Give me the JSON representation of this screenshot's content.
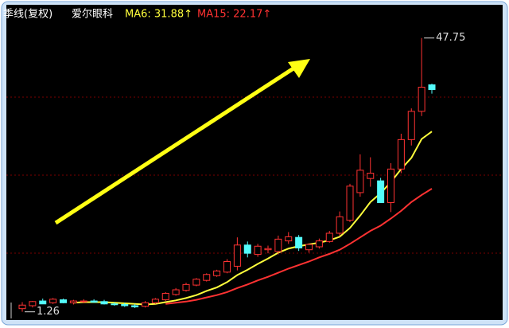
{
  "chart_data": {
    "type": "candlestick",
    "period_label": "季线(复权)",
    "name": "爱尔眼科",
    "ma6_label": "MA6: 31.88↑",
    "ma15_label": "MA15: 22.17↑",
    "high_annotation": 47.75,
    "low_annotation": 1.26,
    "up_color": "#ff3232",
    "down_color": "#54fcfc",
    "ylim": [
      0,
      51.5
    ],
    "candles": [
      [
        1.8,
        2.9,
        1.26,
        2.4
      ],
      [
        2.3,
        3.1,
        2.0,
        3.0
      ],
      [
        3.1,
        3.5,
        2.7,
        2.6
      ],
      [
        2.8,
        3.6,
        2.6,
        3.4
      ],
      [
        3.3,
        3.5,
        2.7,
        2.8
      ],
      [
        2.8,
        3.3,
        2.5,
        3.1
      ],
      [
        3.0,
        3.4,
        2.7,
        3.1
      ],
      [
        3.1,
        3.4,
        2.8,
        2.9
      ],
      [
        3.0,
        3.3,
        2.5,
        2.6
      ],
      [
        2.6,
        2.9,
        2.3,
        2.5
      ],
      [
        2.5,
        2.8,
        2.1,
        2.3
      ],
      [
        2.3,
        2.6,
        1.9,
        2.1
      ],
      [
        2.2,
        3.1,
        2.0,
        2.8
      ],
      [
        2.8,
        3.6,
        2.6,
        3.4
      ],
      [
        3.3,
        4.6,
        3.1,
        4.4
      ],
      [
        4.2,
        5.3,
        4.0,
        5.0
      ],
      [
        4.9,
        6.2,
        4.7,
        5.9
      ],
      [
        5.8,
        7.0,
        5.6,
        6.8
      ],
      [
        6.6,
        7.8,
        6.4,
        7.6
      ],
      [
        7.4,
        8.4,
        7.2,
        8.2
      ],
      [
        8.0,
        10.2,
        7.8,
        9.8
      ],
      [
        9.0,
        13.9,
        8.3,
        12.6
      ],
      [
        12.6,
        13.2,
        10.5,
        11.2
      ],
      [
        11.0,
        12.8,
        10.6,
        12.4
      ],
      [
        11.8,
        12.5,
        11.2,
        12.0
      ],
      [
        11.5,
        14.2,
        11.0,
        13.6
      ],
      [
        13.3,
        14.8,
        12.8,
        14.0
      ],
      [
        13.9,
        14.3,
        11.6,
        12.1
      ],
      [
        11.8,
        12.9,
        11.3,
        12.7
      ],
      [
        12.3,
        13.7,
        12.0,
        13.3
      ],
      [
        13.2,
        15.0,
        13.0,
        14.6
      ],
      [
        14.6,
        18.3,
        14.2,
        17.4
      ],
      [
        16.8,
        23.0,
        16.5,
        22.6
      ],
      [
        21.5,
        28.0,
        20.8,
        25.3
      ],
      [
        23.9,
        27.5,
        22.5,
        24.8
      ],
      [
        23.5,
        24.0,
        19.8,
        19.8
      ],
      [
        19.8,
        26.5,
        18.2,
        25.5
      ],
      [
        25.5,
        31.5,
        24.8,
        30.5
      ],
      [
        30.5,
        35.8,
        29.5,
        35.3
      ],
      [
        35.3,
        47.75,
        34.5,
        39.4
      ],
      [
        39.8,
        40.0,
        38.3,
        39.0
      ]
    ],
    "series": [
      {
        "name": "MA6",
        "color": "#ffff3c",
        "values": [
          null,
          null,
          null,
          null,
          null,
          2.8,
          2.9,
          2.9,
          2.9,
          2.8,
          2.7,
          2.6,
          2.5,
          2.6,
          2.9,
          3.2,
          3.6,
          4.1,
          4.8,
          5.4,
          6.3,
          7.5,
          8.4,
          9.4,
          10.3,
          11.3,
          12.0,
          12.4,
          12.7,
          13.0,
          13.4,
          14.0,
          15.5,
          17.6,
          19.9,
          21.4,
          23.3,
          25.5,
          27.4,
          30.6,
          31.88
        ]
      },
      {
        "name": "MA15",
        "color": "#ff3232",
        "values": [
          null,
          null,
          null,
          null,
          null,
          null,
          null,
          null,
          null,
          null,
          null,
          null,
          null,
          null,
          2.6,
          2.8,
          3.0,
          3.3,
          3.7,
          4.1,
          4.6,
          5.3,
          5.9,
          6.6,
          7.2,
          7.9,
          8.6,
          9.2,
          9.8,
          10.5,
          11.1,
          11.8,
          12.8,
          13.9,
          15.0,
          15.9,
          17.1,
          18.4,
          19.9,
          21.1,
          22.17
        ]
      }
    ]
  }
}
